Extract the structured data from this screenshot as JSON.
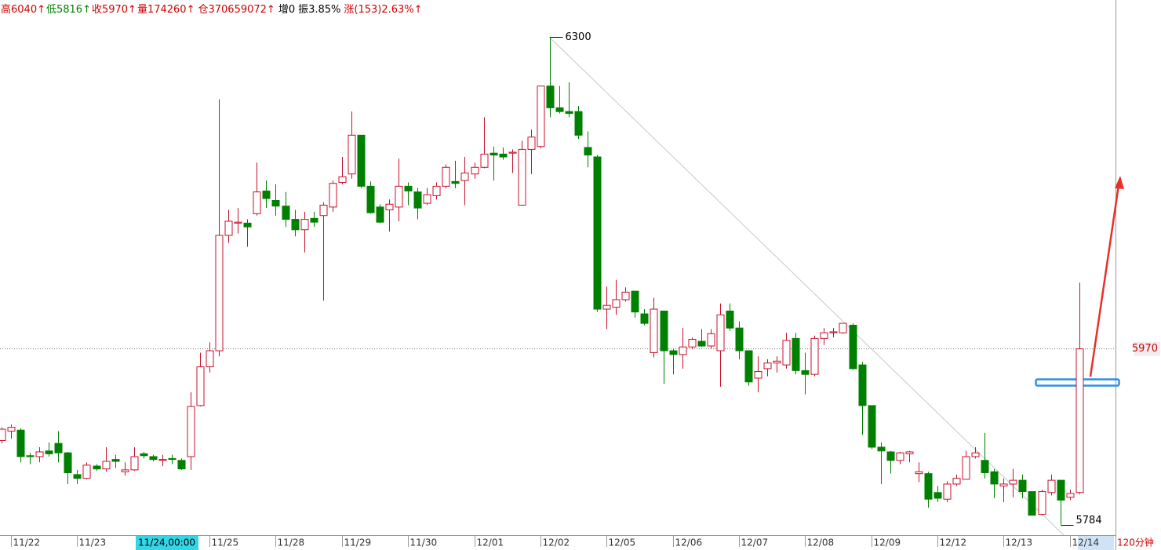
{
  "header": {
    "items": [
      {
        "text": "高6040↑",
        "color": "#d00000"
      },
      {
        "text": "低5816↑",
        "color": "#008000"
      },
      {
        "text": "收5970↑",
        "color": "#d00000"
      },
      {
        "text": "量174260↑",
        "color": "#d00000"
      },
      {
        "text": "仓370659072↑",
        "color": "#d00000"
      },
      {
        "text": "增0",
        "color": "#000000"
      },
      {
        "text": "振3.85%",
        "color": "#000000"
      },
      {
        "text": "涨(153)2.63%↑",
        "color": "#d00000"
      }
    ]
  },
  "cursor_label": "11/24,00:00",
  "period_label": "120分钟",
  "chart_data": {
    "type": "candlestick",
    "up_color": "#c8102e",
    "down_color": "#008000",
    "ylim": [
      5773,
      6339
    ],
    "last_price": 5970,
    "high_label": 6300,
    "low_label": 5784,
    "categories": [
      null,
      "11/22",
      null,
      null,
      null,
      null,
      null,
      null,
      "11/23",
      null,
      null,
      null,
      null,
      null,
      null,
      null,
      null,
      null,
      null,
      null,
      null,
      null,
      "11/25",
      null,
      null,
      null,
      null,
      null,
      null,
      "11/28",
      null,
      null,
      null,
      null,
      null,
      null,
      "11/29",
      null,
      null,
      null,
      null,
      null,
      null,
      "11/30",
      null,
      null,
      null,
      null,
      null,
      null,
      "12/01",
      null,
      null,
      null,
      null,
      null,
      null,
      "12/02",
      null,
      null,
      null,
      null,
      null,
      null,
      "12/05",
      null,
      null,
      null,
      null,
      null,
      null,
      "12/06",
      null,
      null,
      null,
      null,
      null,
      null,
      "12/07",
      null,
      null,
      null,
      null,
      null,
      null,
      "12/08",
      null,
      null,
      null,
      null,
      null,
      null,
      "12/09",
      null,
      null,
      null,
      null,
      null,
      null,
      "12/12",
      null,
      null,
      null,
      null,
      null,
      null,
      "12/13",
      null,
      null,
      null,
      null,
      null,
      null,
      "12/14",
      null
    ],
    "open": [
      5873,
      5883,
      5884,
      5857,
      5856,
      5862,
      5870,
      5860,
      5837,
      5833,
      5846,
      5843,
      5853,
      5840,
      5842,
      5859,
      5856,
      5852,
      5854,
      5852,
      5856,
      5910,
      5951,
      5968,
      6090,
      6103,
      6103,
      6113,
      6137,
      6127,
      6121,
      6107,
      6096,
      6108,
      6111,
      6120,
      6146,
      6155,
      6196,
      6142,
      6120,
      6117,
      6120,
      6142,
      6136,
      6124,
      6132,
      6142,
      6147,
      6148,
      6155,
      6162,
      6177,
      6176,
      6177,
      6122,
      6181,
      6184,
      6248,
      6225,
      6221,
      6221,
      6183,
      6173,
      6012,
      6014,
      6022,
      6031,
      6007,
      5966,
      6010,
      5968,
      5964,
      5972,
      5978,
      5973,
      5968,
      6010,
      5992,
      5968,
      5939,
      5949,
      5955,
      5953,
      5981,
      5947,
      5943,
      5981,
      5987,
      5987,
      5995,
      5953,
      5910,
      5866,
      5861,
      5852,
      5859,
      5838,
      5838,
      5818,
      5811,
      5827,
      5832,
      5856,
      5852,
      5840,
      5825,
      5827,
      5831,
      5819,
      5795,
      5818,
      5831,
      5813,
      5818
    ],
    "high": [
      5887,
      5890,
      5886,
      5860,
      5866,
      5871,
      5883,
      5861,
      5842,
      5850,
      5848,
      5866,
      5858,
      5850,
      5866,
      5861,
      5858,
      5858,
      5858,
      5854,
      5924,
      5966,
      5977,
      6234,
      6117,
      6119,
      6107,
      6167,
      6148,
      6144,
      6136,
      6117,
      6115,
      6115,
      6125,
      6148,
      6173,
      6221,
      6196,
      6147,
      6123,
      6128,
      6171,
      6146,
      6140,
      6140,
      6146,
      6165,
      6169,
      6173,
      6167,
      6215,
      6184,
      6183,
      6181,
      6190,
      6202,
      6248,
      6300,
      6248,
      6252,
      6227,
      6200,
      6175,
      6036,
      6043,
      6035,
      6031,
      6012,
      6024,
      6010,
      5970,
      5992,
      5982,
      5991,
      5991,
      6018,
      6018,
      5999,
      5968,
      5962,
      5959,
      5962,
      5987,
      5987,
      5966,
      5984,
      5992,
      5992,
      5997,
      5997,
      5956,
      5910,
      5871,
      5862,
      5861,
      5862,
      5850,
      5840,
      5825,
      5830,
      5837,
      5862,
      5866,
      5881,
      5843,
      5833,
      5843,
      5837,
      5819,
      5821,
      5837,
      5831,
      5821,
      6040
    ],
    "low": [
      5870,
      5875,
      5850,
      5848,
      5850,
      5856,
      5850,
      5827,
      5827,
      5832,
      5841,
      5840,
      5844,
      5836,
      5841,
      5854,
      5851,
      5846,
      5848,
      5842,
      5842,
      5909,
      5945,
      5962,
      6082,
      6092,
      6078,
      6111,
      6119,
      6111,
      6099,
      6089,
      6072,
      6099,
      6021,
      6115,
      6144,
      6150,
      6140,
      6113,
      6103,
      6094,
      6105,
      6122,
      6107,
      6122,
      6128,
      6140,
      6140,
      6122,
      6150,
      6161,
      6148,
      6170,
      6156,
      6122,
      6155,
      6182,
      6215,
      6219,
      6215,
      6192,
      6162,
      6009,
      5991,
      6006,
      6020,
      6003,
      5995,
      5961,
      5933,
      5943,
      5949,
      5970,
      5972,
      5970,
      5930,
      5989,
      5959,
      5931,
      5924,
      5941,
      5945,
      5949,
      5943,
      5922,
      5941,
      5974,
      5982,
      5986,
      5948,
      5879,
      5864,
      5827,
      5838,
      5848,
      5850,
      5829,
      5802,
      5808,
      5808,
      5825,
      5832,
      5854,
      5833,
      5812,
      5808,
      5813,
      5812,
      5794,
      5794,
      5815,
      5784,
      5810,
      5816
    ],
    "close": [
      5885,
      5887,
      5856,
      5856,
      5861,
      5859,
      5860,
      5839,
      5833,
      5847,
      5843,
      5851,
      5851,
      5842,
      5856,
      5857,
      5853,
      5853,
      5853,
      5843,
      5909,
      5951,
      5968,
      6090,
      6105,
      6104,
      6099,
      6136,
      6129,
      6121,
      6107,
      6096,
      6107,
      6104,
      6122,
      6145,
      6152,
      6196,
      6142,
      6114,
      6104,
      6123,
      6142,
      6137,
      6119,
      6133,
      6142,
      6162,
      6145,
      6156,
      6162,
      6176,
      6175,
      6173,
      6178,
      6181,
      6194,
      6248,
      6225,
      6221,
      6219,
      6196,
      6175,
      6012,
      6016,
      6022,
      6030,
      6009,
      5997,
      6012,
      5968,
      5964,
      5972,
      5980,
      5973,
      5986,
      6006,
      5992,
      5968,
      5935,
      5946,
      5955,
      5957,
      5979,
      5947,
      5943,
      5981,
      5987,
      5988,
      5997,
      5949,
      5910,
      5866,
      5862,
      5852,
      5860,
      5861,
      5840,
      5811,
      5812,
      5827,
      5833,
      5856,
      5860,
      5839,
      5827,
      5827,
      5831,
      5819,
      5794,
      5819,
      5831,
      5810,
      5817,
      5970
    ]
  }
}
